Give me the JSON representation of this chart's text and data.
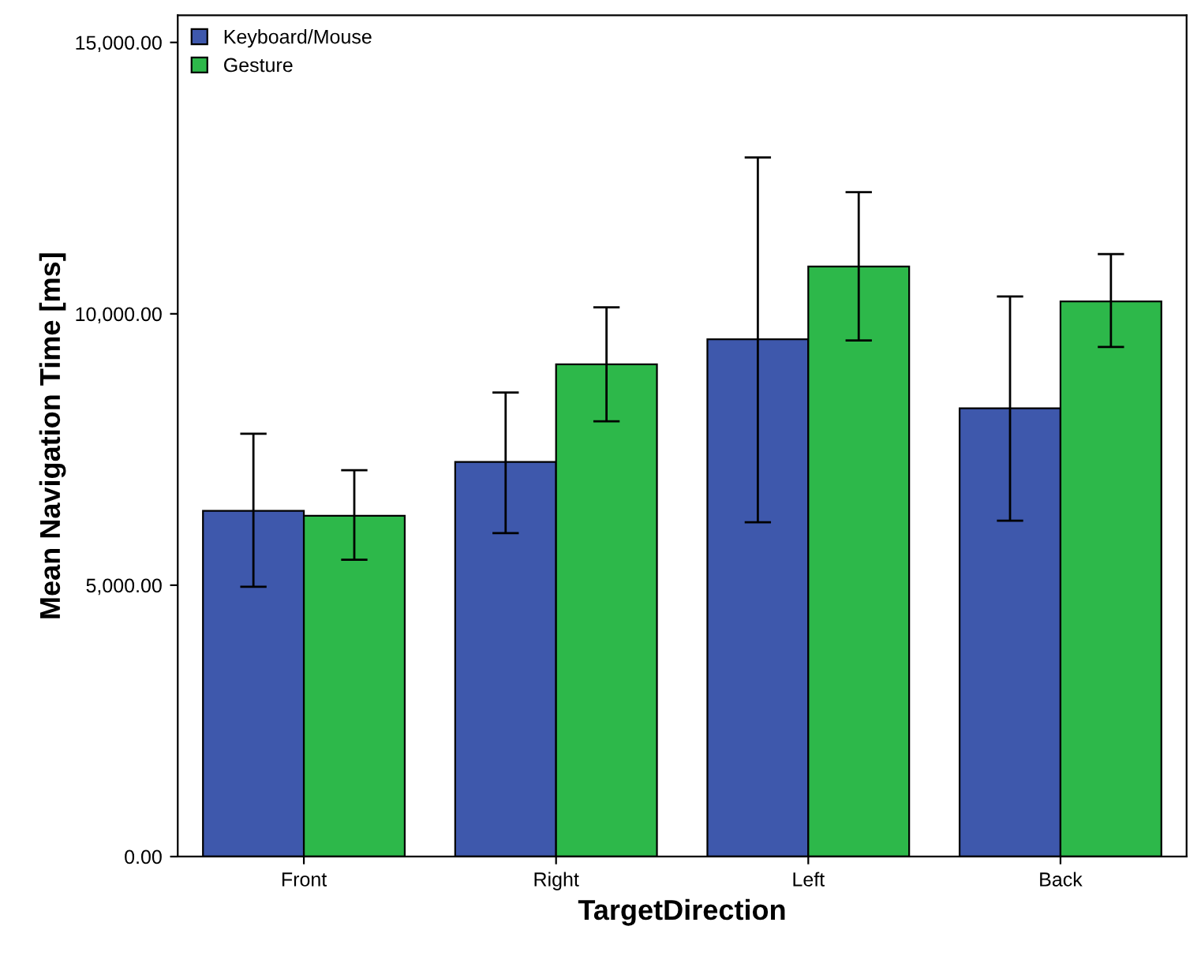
{
  "chart_data": {
    "type": "bar",
    "xlabel": "TargetDirection",
    "ylabel": "Mean Navigation Time [ms]",
    "categories": [
      "Front",
      "Right",
      "Left",
      "Back"
    ],
    "series": [
      {
        "name": "Keyboard/Mouse",
        "color": "#3e58ac",
        "values": [
          6370,
          7270,
          9530,
          8260
        ],
        "errors": [
          [
            4970,
            7790
          ],
          [
            5960,
            8550
          ],
          [
            6160,
            12880
          ],
          [
            6190,
            10320
          ]
        ]
      },
      {
        "name": "Gesture",
        "color": "#2db84a",
        "values": [
          6280,
          9070,
          10870,
          10230
        ],
        "errors": [
          [
            5470,
            7120
          ],
          [
            8020,
            10120
          ],
          [
            9510,
            12240
          ],
          [
            9390,
            11100
          ]
        ]
      }
    ],
    "ylim": [
      0,
      15500
    ],
    "yticks": [
      {
        "value": 0,
        "label": "0.00"
      },
      {
        "value": 5000,
        "label": "5,000.00"
      },
      {
        "value": 10000,
        "label": "10,000.00"
      },
      {
        "value": 15000,
        "label": "15,000.00"
      }
    ],
    "legend": "top left",
    "grid": false
  }
}
